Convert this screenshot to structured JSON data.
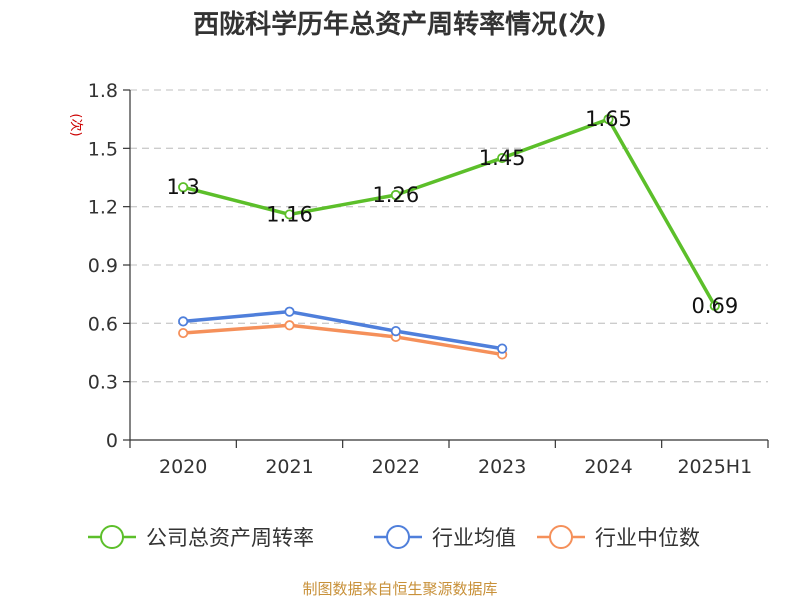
{
  "chart_data": {
    "type": "line",
    "title": "西陇科学历年总资产周转率情况(次)",
    "ylabel": "(次)",
    "xlabel": "",
    "categories": [
      "2020",
      "2021",
      "2022",
      "2023",
      "2024",
      "2025H1"
    ],
    "ylim": [
      0,
      1.8
    ],
    "yticks": [
      "0",
      "0.3",
      "0.6",
      "0.9",
      "1.2",
      "1.5",
      "1.8"
    ],
    "grid": true,
    "legend_position": "bottom",
    "series": [
      {
        "name": "公司总资产周转率",
        "color": "#5cbf2a",
        "values": [
          1.3,
          1.16,
          1.26,
          1.45,
          1.65,
          0.69
        ],
        "labels": [
          "1.3",
          "1.16",
          "1.26",
          "1.45",
          "1.65",
          "0.69"
        ]
      },
      {
        "name": "行业均值",
        "color": "#4f7fdb",
        "values": [
          0.61,
          0.66,
          0.56,
          0.47,
          null,
          null
        ]
      },
      {
        "name": "行业中位数",
        "color": "#f5905a",
        "values": [
          0.55,
          0.59,
          0.53,
          0.44,
          null,
          null
        ]
      }
    ]
  },
  "source": "制图数据来自恒生聚源数据库"
}
